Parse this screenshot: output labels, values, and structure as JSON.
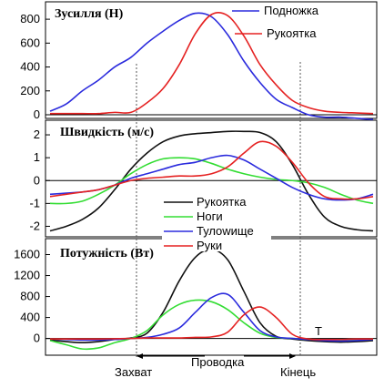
{
  "chart_data": [
    {
      "type": "line",
      "title": "Зусилля (Н)",
      "ylim": [
        0,
        900
      ],
      "y_ticks": [
        "0",
        "200",
        "400",
        "600",
        "800"
      ],
      "x": [
        0,
        5,
        10,
        15,
        20,
        25,
        30,
        35,
        40,
        45,
        50,
        55,
        60,
        65,
        70,
        75,
        80,
        85,
        90,
        95,
        100
      ],
      "series": [
        {
          "name": "Подножка",
          "color": "#2b2bdd",
          "values": [
            30,
            90,
            200,
            290,
            400,
            480,
            600,
            700,
            790,
            850,
            820,
            670,
            450,
            270,
            130,
            60,
            0,
            -20,
            -20,
            -30,
            -40
          ]
        },
        {
          "name": "Рукоятка",
          "color": "#e52222",
          "values": [
            10,
            10,
            10,
            10,
            20,
            20,
            100,
            220,
            420,
            680,
            840,
            830,
            660,
            420,
            250,
            120,
            60,
            30,
            20,
            15,
            10
          ]
        }
      ]
    },
    {
      "type": "line",
      "title": "Швидкість (м/с)",
      "ylim": [
        -2.3,
        2.4
      ],
      "y_ticks": [
        "-2",
        "-1",
        "0",
        "1",
        "2"
      ],
      "x": [
        0,
        5,
        10,
        15,
        20,
        25,
        30,
        35,
        40,
        45,
        50,
        55,
        60,
        65,
        70,
        75,
        80,
        85,
        90,
        95,
        100
      ],
      "series": [
        {
          "name": "Рукоятка",
          "color": "#111111",
          "values": [
            -2.2,
            -2.0,
            -1.7,
            -1.2,
            -0.4,
            0.5,
            1.2,
            1.7,
            1.95,
            2.05,
            2.1,
            2.15,
            2.15,
            2.1,
            1.7,
            0.7,
            -0.6,
            -1.6,
            -2.0,
            -2.15,
            -2.2
          ]
        },
        {
          "name": "Ноги",
          "color": "#33dd33",
          "values": [
            -1.0,
            -1.0,
            -0.9,
            -0.6,
            -0.2,
            0.3,
            0.7,
            0.95,
            1.0,
            0.95,
            0.75,
            0.5,
            0.3,
            0.15,
            0.05,
            0.0,
            -0.1,
            -0.3,
            -0.6,
            -0.85,
            -1.0
          ]
        },
        {
          "name": "Тулowище",
          "color": "#2b2bdd",
          "values": [
            -0.6,
            -0.55,
            -0.5,
            -0.4,
            -0.2,
            0.1,
            0.3,
            0.5,
            0.7,
            0.8,
            1.0,
            1.1,
            0.9,
            0.5,
            0.1,
            -0.3,
            -0.6,
            -0.8,
            -0.85,
            -0.8,
            -0.6
          ]
        },
        {
          "name": "Руки",
          "color": "#e52222",
          "values": [
            -0.7,
            -0.6,
            -0.5,
            -0.4,
            -0.2,
            0.0,
            0.1,
            0.15,
            0.2,
            0.2,
            0.3,
            0.6,
            1.2,
            1.7,
            1.5,
            0.8,
            -0.1,
            -0.7,
            -0.8,
            -0.8,
            -0.7
          ]
        }
      ]
    },
    {
      "type": "line",
      "title": "Потужність (Вт)",
      "ylim": [
        -250,
        1800
      ],
      "y_ticks": [
        "0",
        "400",
        "800",
        "1200",
        "1600"
      ],
      "x": [
        0,
        5,
        10,
        15,
        20,
        25,
        30,
        35,
        40,
        45,
        50,
        55,
        60,
        65,
        70,
        75,
        80,
        85,
        90,
        95,
        100
      ],
      "series": [
        {
          "name": "Рукоятка",
          "color": "#111111",
          "values": [
            -30,
            -60,
            -80,
            -60,
            -20,
            10,
            100,
            500,
            1100,
            1550,
            1700,
            1500,
            900,
            300,
            40,
            -10,
            -40,
            -60,
            -70,
            -60,
            -40
          ]
        },
        {
          "name": "Ноги",
          "color": "#33dd33",
          "values": [
            -40,
            -120,
            -200,
            -180,
            -80,
            0,
            150,
            450,
            650,
            730,
            700,
            550,
            300,
            100,
            20,
            0,
            -20,
            -30,
            -30,
            -30,
            -20
          ]
        },
        {
          "name": "Тулowище",
          "color": "#2b2bdd",
          "values": [
            -10,
            -20,
            -30,
            -30,
            -20,
            0,
            20,
            80,
            200,
            500,
            780,
            840,
            500,
            150,
            30,
            0,
            -20,
            -40,
            -50,
            -40,
            -20
          ]
        },
        {
          "name": "Руки",
          "color": "#e52222",
          "values": [
            -10,
            -10,
            -10,
            -10,
            -5,
            0,
            10,
            10,
            10,
            20,
            30,
            120,
            450,
            600,
            400,
            80,
            -10,
            -20,
            -20,
            -10,
            -10
          ]
        }
      ]
    }
  ],
  "annotations": {
    "catch": "Захват",
    "drive": "Проводка",
    "finish": "Кінець",
    "t_label": "T"
  }
}
